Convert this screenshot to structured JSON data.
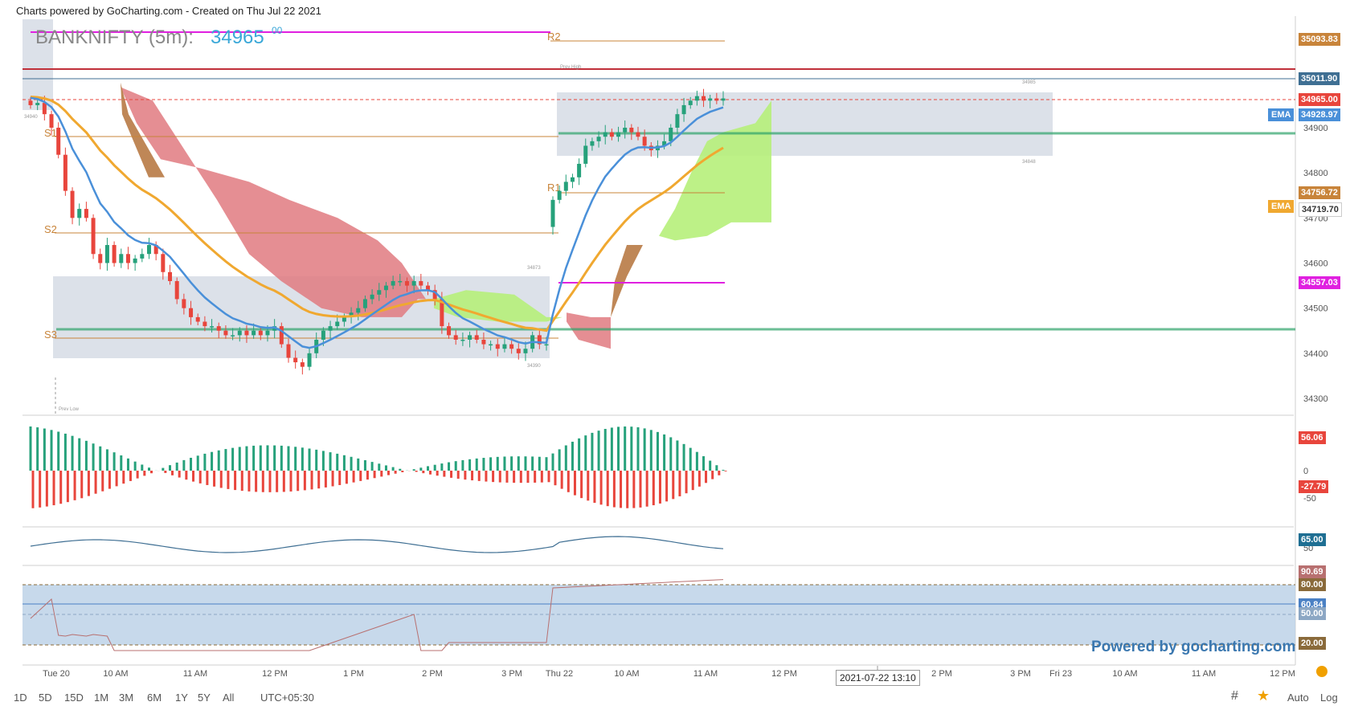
{
  "credit": "Charts powered by GoCharting.com - Created on Thu Jul 22 2021",
  "symbol": "BANKNIFTY (5m):",
  "last_price": "34965",
  "last_price_frac": "00",
  "colors": {
    "up": "#26a17b",
    "down": "#e8453c",
    "ema_fast": "#4a90d9",
    "ema_slow": "#f0a830",
    "cloud_bear": "#e07a80",
    "cloud_bull": "#b6f07a",
    "pivot": "#c8843a",
    "magenta": "#e020e0",
    "red_line": "#c0303a",
    "box": "#cdd4e0",
    "green_band": "#2fa36b",
    "rsi_zone": "#b9cfe6"
  },
  "pivot_labels": [
    "R2",
    "S1",
    "S2",
    "S3",
    "R1"
  ],
  "small_annotations": [
    "Prev High",
    "Prev Low"
  ],
  "box_labels": [
    "34940",
    "34873",
    "34390",
    "34985",
    "34848"
  ],
  "price_axis": {
    "ticks": [
      "34900",
      "34800",
      "34700",
      "34600",
      "34500",
      "34400",
      "34300"
    ],
    "labels": [
      {
        "text": "35093.83",
        "color": "#c8843a"
      },
      {
        "text": "35011.90",
        "color": "#3f6f93"
      },
      {
        "text": "34965.00",
        "color": "#e8453c"
      },
      {
        "text": "34928.97",
        "color": "#4a90d9"
      },
      {
        "text": "34756.72",
        "color": "#c8843a"
      },
      {
        "text": "34719.70",
        "color": "#ffffff"
      },
      {
        "text": "34557.03",
        "color": "#e020e0"
      }
    ],
    "ema_tags": [
      "EMA",
      "EMA"
    ]
  },
  "macd_axis": {
    "ticks": [
      "0",
      "-50"
    ],
    "labels": [
      "56.06",
      "-27.79"
    ]
  },
  "adx_axis": {
    "ticks": [
      "50"
    ],
    "labels": [
      "65.00"
    ]
  },
  "rsi_axis": {
    "labels": [
      "90.69",
      "80.00",
      "60.84",
      "50.00",
      "20.00"
    ]
  },
  "time_axis": [
    "Tue 20",
    "10 AM",
    "11 AM",
    "12 PM",
    "1 PM",
    "2 PM",
    "3 PM",
    "Thu 22",
    "10 AM",
    "11 AM",
    "12 PM",
    "1 PM",
    "2 PM",
    "3 PM",
    "Fri 23",
    "10 AM",
    "11 AM",
    "12 PM"
  ],
  "crosshair_time": "2021-07-22 13:10",
  "powered": "Powered by gocharting.com",
  "toolbar": {
    "ranges": [
      "1D",
      "5D",
      "15D",
      "1M",
      "3M",
      "6M",
      "1Y",
      "5Y",
      "All"
    ],
    "timezone": "UTC+05:30",
    "auto": "Auto",
    "log": "Log"
  },
  "chart_data": {
    "type": "candlestick",
    "symbol": "BANKNIFTY",
    "interval": "5m",
    "ylim": [
      34250,
      35130
    ],
    "candles_close": [
      34950,
      34955,
      34930,
      34900,
      34840,
      34760,
      34700,
      34720,
      34700,
      34620,
      34600,
      34640,
      34600,
      34620,
      34600,
      34610,
      34620,
      34640,
      34620,
      34580,
      34560,
      34520,
      34500,
      34480,
      34470,
      34460,
      34460,
      34450,
      34440,
      34440,
      34450,
      34440,
      34450,
      34440,
      34450,
      34460,
      34420,
      34390,
      34380,
      34370,
      34400,
      34430,
      34450,
      34460,
      34470,
      34480,
      34490,
      34500,
      34520,
      34530,
      34540,
      34550,
      34560,
      34560,
      34550,
      34560,
      34550,
      34540,
      34520,
      34460,
      34440,
      34430,
      34430,
      34440,
      34430,
      34420,
      34420,
      34410,
      34420,
      34410,
      34400,
      34410,
      34440,
      34420,
      34420,
      34740,
      34760,
      34780,
      34790,
      34820,
      34860,
      34870,
      34880,
      34890,
      34880,
      34890,
      34900,
      34890,
      34880,
      34860,
      34850,
      34860,
      34870,
      34900,
      34930,
      34950,
      34960,
      34970,
      34960,
      34965,
      34960,
      34965
    ],
    "ema_fast_last": 34928.97,
    "ema_slow_last": 34719.7,
    "levels": {
      "R2": 35093.83,
      "prev_high": 35011.9,
      "last": 34965.0,
      "R1": 34756.72,
      "magenta": 34557.03
    },
    "macd": {
      "last_hist": 56.06,
      "last_signal": -27.79
    },
    "adx_last": 65.0,
    "rsi": {
      "last": 90.69,
      "upper": 80,
      "mid": 50,
      "lower": 20,
      "ma": 60.84
    }
  }
}
